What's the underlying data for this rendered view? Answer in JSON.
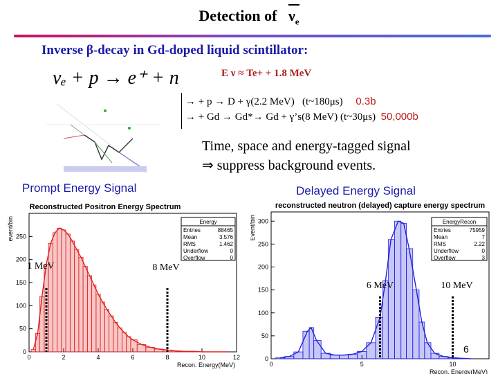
{
  "title": {
    "prefix": "Detection of",
    "nu": "ν",
    "sub": "e"
  },
  "subtitle": {
    "part1": "Inverse β-decay",
    "part2": " in Gd-doped liquid scintillator:"
  },
  "reaction": "νₑ + p → e⁺ + n",
  "energy_relation": "E ν ≈ Te+ + 1.8 MeV",
  "capture_lines": [
    {
      "text": "→ + p → D + γ(2.2 MeV)",
      "time": "(t~180μs)",
      "xsec": "0.3b"
    },
    {
      "text": "→ + Gd → Gd*→ Gd + γ’s(8 MeV)",
      "time": "(t~30μs)",
      "xsec": "50,000b"
    }
  ],
  "conclusion": {
    "line1": "Time, space and energy-tagged signal",
    "line2": "⇒ suppress background events."
  },
  "prompt_header": "Prompt Energy Signal",
  "delayed_header": "Delayed Energy Signal",
  "page_number": "6",
  "colors": {
    "accent": "#1a1aa8",
    "red_hist": "#e02020",
    "blue_hist": "#2020e0",
    "capture_red": "#c01818"
  },
  "chart_data": [
    {
      "type": "bar",
      "title": "Reconstructed Positron Energy Spectrum",
      "xlabel": "Recon. Energy(MeV)",
      "ylabel": "event/bin",
      "xlim": [
        0,
        12
      ],
      "ylim": [
        0,
        300
      ],
      "xticks": [
        0,
        2,
        4,
        6,
        8,
        10,
        12
      ],
      "yticks": [
        0,
        50,
        100,
        150,
        200,
        250
      ],
      "x": [
        0.25,
        0.5,
        0.75,
        1.0,
        1.25,
        1.5,
        1.75,
        2.0,
        2.25,
        2.5,
        2.75,
        3.0,
        3.25,
        3.5,
        3.75,
        4.0,
        4.25,
        4.5,
        4.75,
        5.0,
        5.25,
        5.5,
        5.75,
        6.0,
        6.5,
        7.0,
        7.5,
        8.0,
        8.5,
        9.0,
        9.5,
        10.0,
        10.5,
        11.0,
        11.5
      ],
      "values": [
        5,
        40,
        120,
        190,
        235,
        258,
        268,
        264,
        255,
        240,
        222,
        205,
        185,
        165,
        145,
        125,
        108,
        92,
        78,
        64,
        52,
        42,
        33,
        26,
        16,
        10,
        6,
        4,
        2,
        1,
        1,
        0,
        0,
        0,
        0
      ],
      "stats": {
        "label": "Energy",
        "rows": [
          [
            "Entries",
            "88465"
          ],
          [
            "Mean",
            "3.576"
          ],
          [
            "RMS",
            "1.462"
          ],
          [
            "Underflow",
            "0"
          ],
          [
            "Overflow",
            "0"
          ]
        ]
      },
      "markers": [
        {
          "x": 1,
          "label": "1 MeV"
        },
        {
          "x": 8,
          "label": "8 MeV"
        }
      ]
    },
    {
      "type": "bar",
      "title": "reconstructed neutron (delayed) capture energy spectrum",
      "xlabel": "Recon. Energy(MeV)",
      "ylabel": "Event/bin",
      "xlim": [
        0,
        12
      ],
      "ylim": [
        0,
        320
      ],
      "xticks": [
        0,
        5,
        10
      ],
      "yticks": [
        0,
        50,
        100,
        150,
        200,
        250,
        300
      ],
      "x": [
        0.5,
        1.0,
        1.5,
        2.0,
        2.2,
        2.5,
        3.0,
        3.5,
        4.0,
        4.5,
        5.0,
        5.5,
        6.0,
        6.3,
        6.6,
        7.0,
        7.3,
        7.6,
        8.0,
        8.3,
        8.6,
        9.0,
        9.5,
        10.0,
        10.5,
        11.0
      ],
      "values": [
        2,
        5,
        15,
        60,
        68,
        40,
        12,
        8,
        8,
        10,
        16,
        35,
        90,
        170,
        260,
        300,
        295,
        240,
        150,
        80,
        35,
        12,
        5,
        2,
        1,
        0
      ],
      "stats": {
        "label": "EnergyRecon",
        "rows": [
          [
            "Entries",
            "75959"
          ],
          [
            "Mean",
            "7"
          ],
          [
            "RMS",
            "2.22"
          ],
          [
            "Underflow",
            "0"
          ],
          [
            "Overflow",
            "3"
          ]
        ]
      },
      "markers": [
        {
          "x": 6,
          "label": "6 MeV"
        },
        {
          "x": 10,
          "label": "10 MeV"
        }
      ]
    }
  ]
}
